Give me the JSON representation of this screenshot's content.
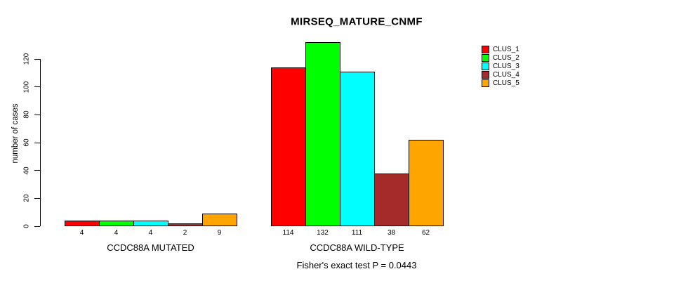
{
  "title": "MIRSEQ_MATURE_CNMF",
  "y_axis": {
    "label": "number of cases",
    "ticks": [
      0,
      20,
      40,
      60,
      80,
      100,
      120
    ]
  },
  "legend": {
    "items": [
      {
        "label": "CLUS_1",
        "color": "#FF0000"
      },
      {
        "label": "CLUS_2",
        "color": "#00FF00"
      },
      {
        "label": "CLUS_3",
        "color": "#00FFFF"
      },
      {
        "label": "CLUS_4",
        "color": "#A52A2A"
      },
      {
        "label": "CLUS_5",
        "color": "#FFA500"
      }
    ]
  },
  "chart_data": {
    "type": "bar",
    "title": "MIRSEQ_MATURE_CNMF",
    "ylabel": "number of cases",
    "ylim": [
      0,
      135
    ],
    "yticks": [
      0,
      20,
      40,
      60,
      80,
      100,
      120
    ],
    "grid": false,
    "legend_position": "top-right",
    "categories": [
      "CCDC88A MUTATED",
      "CCDC88A WILD-TYPE"
    ],
    "series": [
      {
        "name": "CLUS_1",
        "color": "#FF0000",
        "values": [
          4,
          114
        ]
      },
      {
        "name": "CLUS_2",
        "color": "#00FF00",
        "values": [
          4,
          132
        ]
      },
      {
        "name": "CLUS_3",
        "color": "#00FFFF",
        "values": [
          4,
          111
        ]
      },
      {
        "name": "CLUS_4",
        "color": "#A52A2A",
        "values": [
          2,
          38
        ]
      },
      {
        "name": "CLUS_5",
        "color": "#FFA500",
        "values": [
          9,
          62
        ]
      }
    ],
    "bar_value_labels": [
      [
        "4",
        "4",
        "4",
        "2",
        "9"
      ],
      [
        "114",
        "132",
        "111",
        "38",
        "62"
      ]
    ],
    "annotation": "Fisher's exact test P = 0.0443"
  }
}
